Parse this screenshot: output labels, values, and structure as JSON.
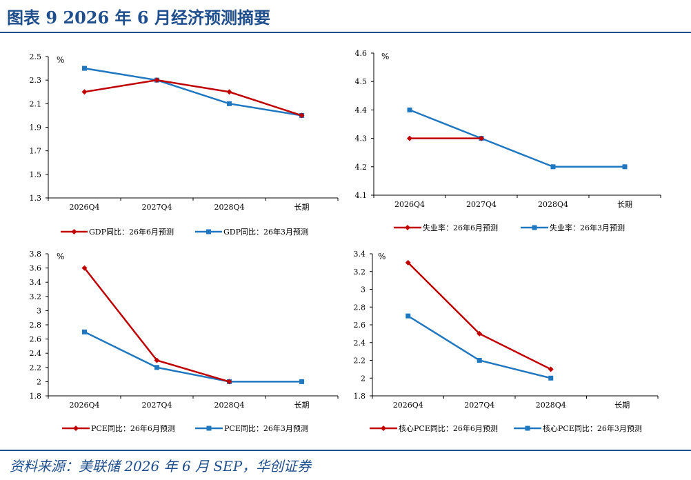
{
  "title": "图表 9    2026 年 6 月经济预测摘要",
  "source": "资料来源：美联储 2026 年 6 月 SEP，华创证券",
  "colors": {
    "accent": "#1f4e8c",
    "red": "#c00000",
    "blue": "#1f77c0",
    "axis": "#000000"
  },
  "chart_data": [
    {
      "type": "line",
      "unit_label": "%",
      "categories": [
        "2026Q4",
        "2027Q4",
        "2028Q4",
        "长期"
      ],
      "ylim": [
        1.3,
        2.5
      ],
      "yticks": [
        "1.3",
        "1.5",
        "1.7",
        "1.9",
        "2.1",
        "2.3",
        "2.5"
      ],
      "series": [
        {
          "name": "GDP同比：26年6月预测",
          "color": "#c00000",
          "marker": "diamond",
          "values": [
            2.2,
            2.3,
            2.2,
            2.0
          ]
        },
        {
          "name": "GDP同比：26年3月预测",
          "color": "#1f77c0",
          "marker": "square",
          "values": [
            2.4,
            2.3,
            2.1,
            2.0
          ]
        }
      ]
    },
    {
      "type": "line",
      "unit_label": "%",
      "categories": [
        "2026Q4",
        "2027Q4",
        "2028Q4",
        "长期"
      ],
      "ylim": [
        4.1,
        4.6
      ],
      "yticks": [
        "4.1",
        "4.2",
        "4.3",
        "4.4",
        "4.5",
        "4.6"
      ],
      "series": [
        {
          "name": "失业率：26年6月预测",
          "color": "#c00000",
          "marker": "diamond",
          "values": [
            4.3,
            4.3,
            null,
            null
          ]
        },
        {
          "name": "失业率：26年3月预测",
          "color": "#1f77c0",
          "marker": "square",
          "values": [
            4.4,
            4.3,
            4.2,
            4.2
          ]
        }
      ]
    },
    {
      "type": "line",
      "unit_label": "%",
      "categories": [
        "2026Q4",
        "2027Q4",
        "2028Q4",
        "长期"
      ],
      "ylim": [
        1.8,
        3.8
      ],
      "yticks": [
        "1.8",
        "2",
        "2.2",
        "2.4",
        "2.6",
        "2.8",
        "3",
        "3.2",
        "3.4",
        "3.6",
        "3.8"
      ],
      "series": [
        {
          "name": "PCE同比：26年6月预测",
          "color": "#c00000",
          "marker": "diamond",
          "values": [
            3.6,
            2.3,
            2.0,
            null
          ]
        },
        {
          "name": "PCE同比：26年3月预测",
          "color": "#1f77c0",
          "marker": "square",
          "values": [
            2.7,
            2.2,
            2.0,
            2.0
          ]
        }
      ]
    },
    {
      "type": "line",
      "unit_label": "%",
      "categories": [
        "2026Q4",
        "2027Q4",
        "2028Q4",
        "长期"
      ],
      "ylim": [
        1.8,
        3.4
      ],
      "yticks": [
        "1.8",
        "2",
        "2.2",
        "2.4",
        "2.6",
        "2.8",
        "3",
        "3.2",
        "3.4"
      ],
      "series": [
        {
          "name": "核心PCE同比：26年6月预测",
          "color": "#c00000",
          "marker": "diamond",
          "values": [
            3.3,
            2.5,
            2.1,
            null
          ]
        },
        {
          "name": "核心PCE同比：26年3月预测",
          "color": "#1f77c0",
          "marker": "square",
          "values": [
            2.7,
            2.2,
            2.0,
            null
          ]
        }
      ]
    }
  ]
}
